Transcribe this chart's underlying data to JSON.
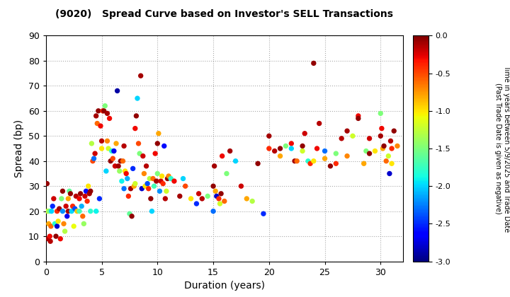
{
  "title": "(9020)   Spread Curve based on Investor's SELL Transactions",
  "xlabel": "Duration (years)",
  "ylabel": "Spread (bp)",
  "xlim": [
    0,
    32
  ],
  "ylim": [
    0,
    90
  ],
  "xticks": [
    0,
    5,
    10,
    15,
    20,
    25,
    30
  ],
  "yticks": [
    0,
    10,
    20,
    30,
    40,
    50,
    60,
    70,
    80,
    90
  ],
  "colorbar_label": "Time in years between 5/9/2025 and Trade Date\n(Past Trade Date is given as negative)",
  "cmap_vmin": -3.0,
  "cmap_vmax": 0.0,
  "cmap_ticks": [
    0.0,
    -0.5,
    -1.0,
    -1.5,
    -2.0,
    -2.5,
    -3.0
  ],
  "background_color": "#ffffff",
  "grid_color": "#aaaaaa",
  "points": [
    [
      0.1,
      31,
      -0.05
    ],
    [
      0.15,
      20,
      -1.2
    ],
    [
      0.2,
      9,
      -0.1
    ],
    [
      0.25,
      15,
      -0.8
    ],
    [
      0.3,
      20,
      -1.5
    ],
    [
      0.35,
      10,
      -0.3
    ],
    [
      0.4,
      8,
      -0.15
    ],
    [
      0.45,
      14,
      -0.6
    ],
    [
      0.5,
      20,
      -2.0
    ],
    [
      0.6,
      22,
      -2.5
    ],
    [
      0.7,
      25,
      -0.2
    ],
    [
      0.8,
      15,
      -1.8
    ],
    [
      0.9,
      10,
      -0.05
    ],
    [
      1.0,
      20,
      -0.4
    ],
    [
      1.0,
      14,
      -2.8
    ],
    [
      1.1,
      16,
      -1.0
    ],
    [
      1.2,
      21,
      -0.1
    ],
    [
      1.3,
      9,
      -0.3
    ],
    [
      1.4,
      25,
      -1.5
    ],
    [
      1.5,
      28,
      -0.05
    ],
    [
      1.5,
      20,
      -2.2
    ],
    [
      1.6,
      15,
      -0.7
    ],
    [
      1.7,
      12,
      -1.3
    ],
    [
      1.8,
      22,
      -0.2
    ],
    [
      1.9,
      18,
      -2.7
    ],
    [
      2.0,
      20,
      -0.1
    ],
    [
      2.0,
      25,
      -0.8
    ],
    [
      2.1,
      28,
      -1.6
    ],
    [
      2.2,
      27,
      -0.05
    ],
    [
      2.3,
      20,
      -2.0
    ],
    [
      2.4,
      22,
      -0.4
    ],
    [
      2.5,
      14,
      -1.1
    ],
    [
      2.6,
      21,
      -2.4
    ],
    [
      2.7,
      26,
      -0.15
    ],
    [
      2.8,
      20,
      -0.9
    ],
    [
      3.0,
      25,
      -0.3
    ],
    [
      3.0,
      20,
      -1.7
    ],
    [
      3.1,
      27,
      -0.05
    ],
    [
      3.2,
      22,
      -2.1
    ],
    [
      3.3,
      18,
      -0.6
    ],
    [
      3.4,
      15,
      -1.4
    ],
    [
      3.5,
      26,
      -0.2
    ],
    [
      3.6,
      28,
      -2.6
    ],
    [
      3.7,
      24,
      -0.4
    ],
    [
      3.8,
      30,
      -1.0
    ],
    [
      3.9,
      27,
      -0.1
    ],
    [
      4.0,
      28,
      -0.05
    ],
    [
      4.0,
      20,
      -1.8
    ],
    [
      4.1,
      47,
      -1.3
    ],
    [
      4.2,
      40,
      -0.5
    ],
    [
      4.3,
      41,
      -2.3
    ],
    [
      4.4,
      43,
      -0.2
    ],
    [
      4.5,
      58,
      -0.1
    ],
    [
      4.5,
      20,
      -1.9
    ],
    [
      4.6,
      55,
      -0.6
    ],
    [
      4.7,
      60,
      -0.05
    ],
    [
      4.8,
      25,
      -2.5
    ],
    [
      4.9,
      54,
      -0.3
    ],
    [
      5.0,
      45,
      -1.0
    ],
    [
      5.0,
      48,
      -0.15
    ],
    [
      5.1,
      60,
      -0.4
    ],
    [
      5.2,
      60,
      -0.05
    ],
    [
      5.3,
      62,
      -1.5
    ],
    [
      5.4,
      36,
      -2.0
    ],
    [
      5.5,
      48,
      -0.7
    ],
    [
      5.5,
      59,
      -0.1
    ],
    [
      5.6,
      45,
      -1.2
    ],
    [
      5.7,
      57,
      -0.3
    ],
    [
      5.8,
      40,
      -0.05
    ],
    [
      5.9,
      44,
      -1.8
    ],
    [
      6.0,
      41,
      -0.5
    ],
    [
      6.1,
      44,
      -2.7
    ],
    [
      6.2,
      38,
      -0.2
    ],
    [
      6.3,
      47,
      -0.8
    ],
    [
      6.4,
      68,
      -2.9
    ],
    [
      6.5,
      38,
      -0.1
    ],
    [
      6.6,
      36,
      -1.4
    ],
    [
      6.7,
      40,
      -0.05
    ],
    [
      6.8,
      32,
      -1.9
    ],
    [
      6.9,
      40,
      -0.6
    ],
    [
      7.0,
      29,
      -2.3
    ],
    [
      7.0,
      46,
      -0.15
    ],
    [
      7.1,
      36,
      -1.0
    ],
    [
      7.2,
      35,
      -0.3
    ],
    [
      7.3,
      33,
      -2.1
    ],
    [
      7.4,
      26,
      -0.4
    ],
    [
      7.5,
      19,
      -1.6
    ],
    [
      7.6,
      29,
      -0.1
    ],
    [
      7.7,
      18,
      -0.05
    ],
    [
      7.8,
      37,
      -2.5
    ],
    [
      7.9,
      30,
      -0.8
    ],
    [
      8.0,
      31,
      -1.2
    ],
    [
      8.0,
      53,
      -0.3
    ],
    [
      8.1,
      58,
      -0.05
    ],
    [
      8.2,
      65,
      -2.0
    ],
    [
      8.3,
      47,
      -0.5
    ],
    [
      8.4,
      43,
      -1.5
    ],
    [
      8.5,
      74,
      -0.1
    ],
    [
      8.6,
      29,
      -2.8
    ],
    [
      8.7,
      42,
      -0.2
    ],
    [
      8.8,
      35,
      -0.7
    ],
    [
      8.9,
      30,
      -1.0
    ],
    [
      9.0,
      38,
      -0.15
    ],
    [
      9.1,
      31,
      -2.4
    ],
    [
      9.2,
      29,
      -0.4
    ],
    [
      9.3,
      33,
      -1.3
    ],
    [
      9.4,
      25,
      -0.05
    ],
    [
      9.5,
      20,
      -2.0
    ],
    [
      9.6,
      33,
      -0.6
    ],
    [
      9.7,
      30,
      -1.7
    ],
    [
      9.8,
      43,
      -0.3
    ],
    [
      9.9,
      32,
      -0.1
    ],
    [
      10.0,
      47,
      -0.05
    ],
    [
      10.0,
      35,
      -1.5
    ],
    [
      10.1,
      51,
      -0.8
    ],
    [
      10.2,
      28,
      -2.2
    ],
    [
      10.3,
      32,
      -0.2
    ],
    [
      10.4,
      34,
      -1.0
    ],
    [
      10.5,
      31,
      -0.4
    ],
    [
      10.6,
      46,
      -2.6
    ],
    [
      10.7,
      25,
      -0.15
    ],
    [
      10.8,
      28,
      -1.2
    ],
    [
      10.9,
      33,
      -0.05
    ],
    [
      11.0,
      34,
      -0.7
    ],
    [
      11.2,
      33,
      -1.8
    ],
    [
      11.5,
      32,
      -0.3
    ],
    [
      12.0,
      26,
      -0.1
    ],
    [
      12.3,
      33,
      -2.0
    ],
    [
      12.5,
      30,
      -0.5
    ],
    [
      13.0,
      25,
      -1.0
    ],
    [
      13.5,
      23,
      -2.5
    ],
    [
      13.7,
      27,
      -0.2
    ],
    [
      14.0,
      25,
      -0.15
    ],
    [
      14.5,
      26,
      -1.5
    ],
    [
      15.0,
      30,
      -0.05
    ],
    [
      15.0,
      20,
      -2.3
    ],
    [
      15.1,
      38,
      -0.1
    ],
    [
      15.2,
      28,
      -0.8
    ],
    [
      15.3,
      26,
      -2.8
    ],
    [
      15.5,
      25,
      -0.4
    ],
    [
      15.6,
      23,
      -1.2
    ],
    [
      15.7,
      27,
      -0.05
    ],
    [
      15.8,
      42,
      -0.3
    ],
    [
      16.0,
      24,
      -0.6
    ],
    [
      16.2,
      35,
      -1.5
    ],
    [
      16.5,
      44,
      -0.1
    ],
    [
      17.0,
      40,
      -2.0
    ],
    [
      17.5,
      30,
      -0.2
    ],
    [
      18.0,
      25,
      -0.8
    ],
    [
      18.5,
      24,
      -1.3
    ],
    [
      19.0,
      39,
      -0.05
    ],
    [
      19.5,
      19,
      -2.5
    ],
    [
      20.0,
      50,
      -0.1
    ],
    [
      20.0,
      45,
      -0.4
    ],
    [
      20.5,
      44,
      -0.15
    ],
    [
      21.0,
      45,
      -0.05
    ],
    [
      21.0,
      42,
      -0.8
    ],
    [
      21.5,
      46,
      -1.5
    ],
    [
      22.0,
      47,
      -0.3
    ],
    [
      22.0,
      45,
      -2.0
    ],
    [
      22.3,
      40,
      -0.1
    ],
    [
      22.5,
      40,
      -0.6
    ],
    [
      23.0,
      46,
      -0.05
    ],
    [
      23.0,
      44,
      -1.2
    ],
    [
      23.2,
      51,
      -0.2
    ],
    [
      23.5,
      40,
      -1.8
    ],
    [
      23.7,
      39,
      -0.4
    ],
    [
      24.0,
      79,
      -0.05
    ],
    [
      24.0,
      40,
      -1.0
    ],
    [
      24.3,
      45,
      -0.3
    ],
    [
      24.5,
      55,
      -0.15
    ],
    [
      25.0,
      41,
      -0.8
    ],
    [
      25.0,
      44,
      -2.3
    ],
    [
      25.5,
      38,
      -0.05
    ],
    [
      26.0,
      39,
      -0.4
    ],
    [
      26.0,
      43,
      -1.5
    ],
    [
      26.5,
      49,
      -0.15
    ],
    [
      27.0,
      52,
      -0.1
    ],
    [
      27.0,
      42,
      -0.7
    ],
    [
      27.5,
      50,
      -1.2
    ],
    [
      28.0,
      58,
      -0.3
    ],
    [
      28.0,
      57,
      -0.05
    ],
    [
      28.5,
      39,
      -0.8
    ],
    [
      28.7,
      44,
      -1.5
    ],
    [
      29.0,
      49,
      -0.2
    ],
    [
      29.0,
      43,
      -0.05
    ],
    [
      29.5,
      44,
      -1.0
    ],
    [
      30.0,
      59,
      -1.5
    ],
    [
      30.0,
      50,
      -0.1
    ],
    [
      30.1,
      53,
      -0.3
    ],
    [
      30.2,
      45,
      -0.8
    ],
    [
      30.3,
      46,
      -0.05
    ],
    [
      30.5,
      40,
      -0.6
    ],
    [
      30.7,
      42,
      -1.2
    ],
    [
      30.8,
      35,
      -2.8
    ],
    [
      30.9,
      48,
      -0.15
    ],
    [
      31.0,
      45,
      -0.4
    ],
    [
      31.0,
      39,
      -1.0
    ],
    [
      31.2,
      52,
      -0.05
    ],
    [
      31.5,
      46,
      -0.7
    ]
  ]
}
